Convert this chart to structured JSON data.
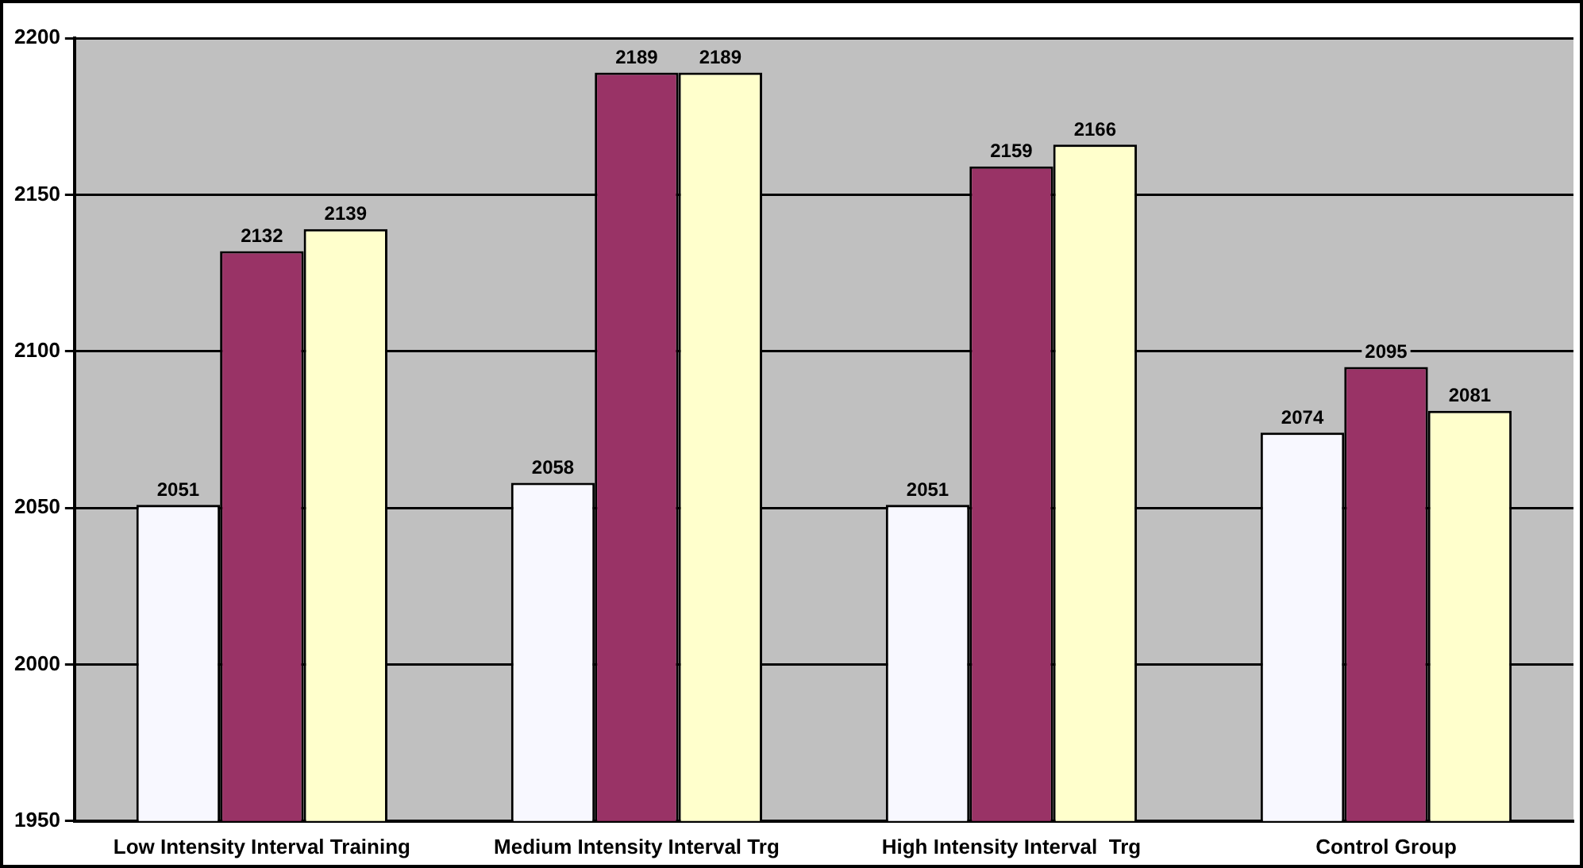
{
  "chart_data": {
    "type": "bar",
    "categories": [
      "Low Intensity Interval Training",
      "Medium Intensity Interval Trg",
      "High Intensity Interval  Trg",
      "Control Group"
    ],
    "series": [
      {
        "color": "#f8f8ff",
        "values": [
          2051,
          2058,
          2051,
          2074
        ]
      },
      {
        "color": "#993366",
        "values": [
          2132,
          2189,
          2159,
          2095
        ]
      },
      {
        "color": "#ffffcc",
        "values": [
          2139,
          2189,
          2166,
          2081
        ]
      }
    ],
    "ylim": [
      1950,
      2200
    ],
    "yticks": [
      1950,
      2000,
      2050,
      2100,
      2150,
      2200
    ],
    "grid": "y",
    "legend": false,
    "data_labels": true
  }
}
